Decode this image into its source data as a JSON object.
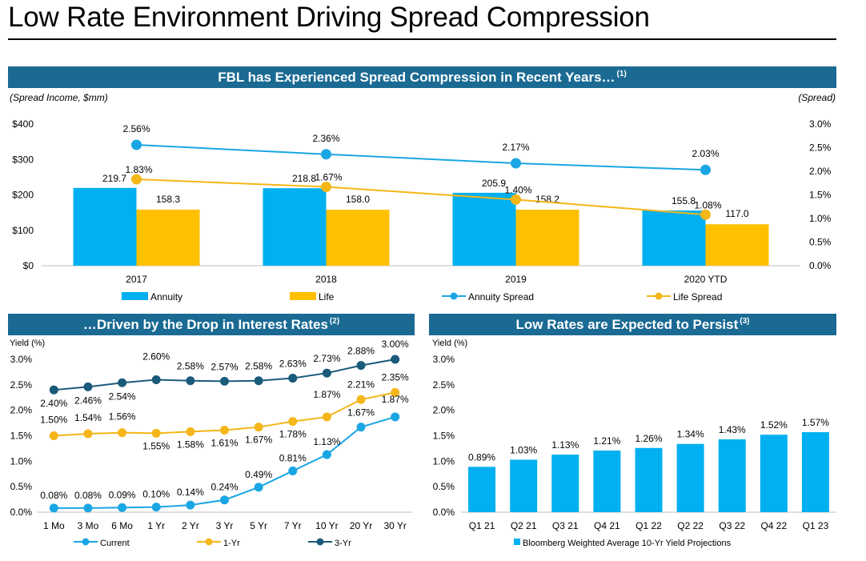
{
  "page": {
    "title": "Low Rate Environment Driving Spread Compression"
  },
  "colors": {
    "band": "#1a6a93",
    "annuity": "#00b0f0",
    "life": "#ffc000",
    "annuity_spread": "#1aa6e4",
    "life_spread": "#f4b619",
    "yr3": "#1a5a7a",
    "axis": "#000000"
  },
  "panels": {
    "top": {
      "title": "FBL has Experienced Spread Compression in Recent Years…",
      "sup": "(1)",
      "left_note": "(Spread Income, $mm)",
      "right_note": "(Spread)"
    },
    "left": {
      "title": "…Driven by the Drop in Interest Rates",
      "sup": "(2)"
    },
    "right": {
      "title": "Low Rates are Expected to Persist",
      "sup": "(3)"
    }
  },
  "chart_data": [
    {
      "type": "bar",
      "title": "FBL has Experienced Spread Compression in Recent Years…(1)",
      "categories": [
        "2017",
        "2018",
        "2019",
        "2020 YTD"
      ],
      "series": [
        {
          "name": "Annuity",
          "values": [
            219.7,
            218.8,
            205.9,
            155.8
          ],
          "labels": [
            "219.7",
            "218.8",
            "205.9",
            "155.8"
          ],
          "axis": "left"
        },
        {
          "name": "Life",
          "values": [
            158.3,
            158.0,
            158.2,
            117.0
          ],
          "labels": [
            "158.3",
            "158.0",
            "158.2",
            "117.0"
          ],
          "axis": "left"
        },
        {
          "name": "Annuity Spread",
          "type": "line",
          "values": [
            2.56,
            2.36,
            2.17,
            2.03
          ],
          "labels": [
            "2.56%",
            "2.36%",
            "2.17%",
            "2.03%"
          ],
          "axis": "right"
        },
        {
          "name": "Life Spread",
          "type": "line",
          "values": [
            1.83,
            1.67,
            1.4,
            1.08
          ],
          "labels": [
            "1.83%",
            "1.67%",
            "1.40%",
            "1.08%"
          ],
          "axis": "right"
        }
      ],
      "y_left": {
        "label": "(Spread Income, $mm)",
        "lim": [
          0,
          400
        ],
        "ticks": [
          "$0",
          "$100",
          "$200",
          "$300",
          "$400"
        ]
      },
      "y_right": {
        "label": "(Spread)",
        "lim": [
          0,
          3.0
        ],
        "ticks": [
          "0.0%",
          "0.5%",
          "1.0%",
          "1.5%",
          "2.0%",
          "2.5%",
          "3.0%"
        ]
      },
      "legend": [
        "Annuity",
        "Life",
        "Annuity Spread",
        "Life Spread"
      ],
      "legend_position": "bottom"
    },
    {
      "type": "line",
      "title": "…Driven by the Drop in Interest Rates(2)",
      "ylabel": "Yield (%)",
      "categories": [
        "1 Mo",
        "3 Mo",
        "6 Mo",
        "1 Yr",
        "2 Yr",
        "3 Yr",
        "5 Yr",
        "7 Yr",
        "10 Yr",
        "20 Yr",
        "30 Yr"
      ],
      "ylim": [
        0,
        3.0
      ],
      "yticks": [
        "0.0%",
        "0.5%",
        "1.0%",
        "1.5%",
        "2.0%",
        "2.5%",
        "3.0%"
      ],
      "series": [
        {
          "name": "Current",
          "values": [
            0.08,
            0.08,
            0.09,
            0.1,
            0.14,
            0.24,
            0.49,
            0.81,
            1.13,
            1.67,
            1.87
          ],
          "labels": [
            "0.08%",
            "0.08%",
            "0.09%",
            "0.10%",
            "0.14%",
            "0.24%",
            "0.49%",
            "0.81%",
            "1.13%",
            "1.67%",
            "1.87%"
          ]
        },
        {
          "name": "1-Yr",
          "values": [
            1.5,
            1.54,
            1.56,
            1.55,
            1.58,
            1.61,
            1.67,
            1.78,
            1.87,
            2.21,
            2.35
          ],
          "labels": [
            "1.50%",
            "1.54%",
            "1.56%",
            "1.55%",
            "1.58%",
            "1.61%",
            "1.67%",
            "1.78%",
            "1.87%",
            "2.21%",
            "2.35%"
          ]
        },
        {
          "name": "3-Yr",
          "values": [
            2.4,
            2.46,
            2.54,
            2.6,
            2.58,
            2.57,
            2.58,
            2.63,
            2.73,
            2.88,
            3.0
          ],
          "labels": [
            "2.40%",
            "2.46%",
            "2.54%",
            "2.60%",
            "2.58%",
            "2.57%",
            "2.58%",
            "2.63%",
            "2.73%",
            "2.88%",
            "3.00%"
          ]
        }
      ],
      "legend": [
        "Current",
        "1-Yr",
        "3-Yr"
      ],
      "legend_position": "bottom"
    },
    {
      "type": "bar",
      "title": "Low Rates are Expected to Persist(3)",
      "ylabel": "Yield (%)",
      "categories": [
        "Q1 21",
        "Q2 21",
        "Q3 21",
        "Q4 21",
        "Q1 22",
        "Q2 22",
        "Q3 22",
        "Q4 22",
        "Q1 23"
      ],
      "ylim": [
        0,
        3.0
      ],
      "yticks": [
        "0.0%",
        "0.5%",
        "1.0%",
        "1.5%",
        "2.0%",
        "2.5%",
        "3.0%"
      ],
      "series": [
        {
          "name": "Bloomberg Weighted Average 10-Yr Yield Projections",
          "values": [
            0.89,
            1.03,
            1.13,
            1.21,
            1.26,
            1.34,
            1.43,
            1.52,
            1.57
          ],
          "labels": [
            "0.89%",
            "1.03%",
            "1.13%",
            "1.21%",
            "1.26%",
            "1.34%",
            "1.43%",
            "1.52%",
            "1.57%"
          ]
        }
      ],
      "legend": [
        "Bloomberg Weighted Average 10-Yr Yield Projections"
      ],
      "legend_position": "bottom"
    }
  ]
}
